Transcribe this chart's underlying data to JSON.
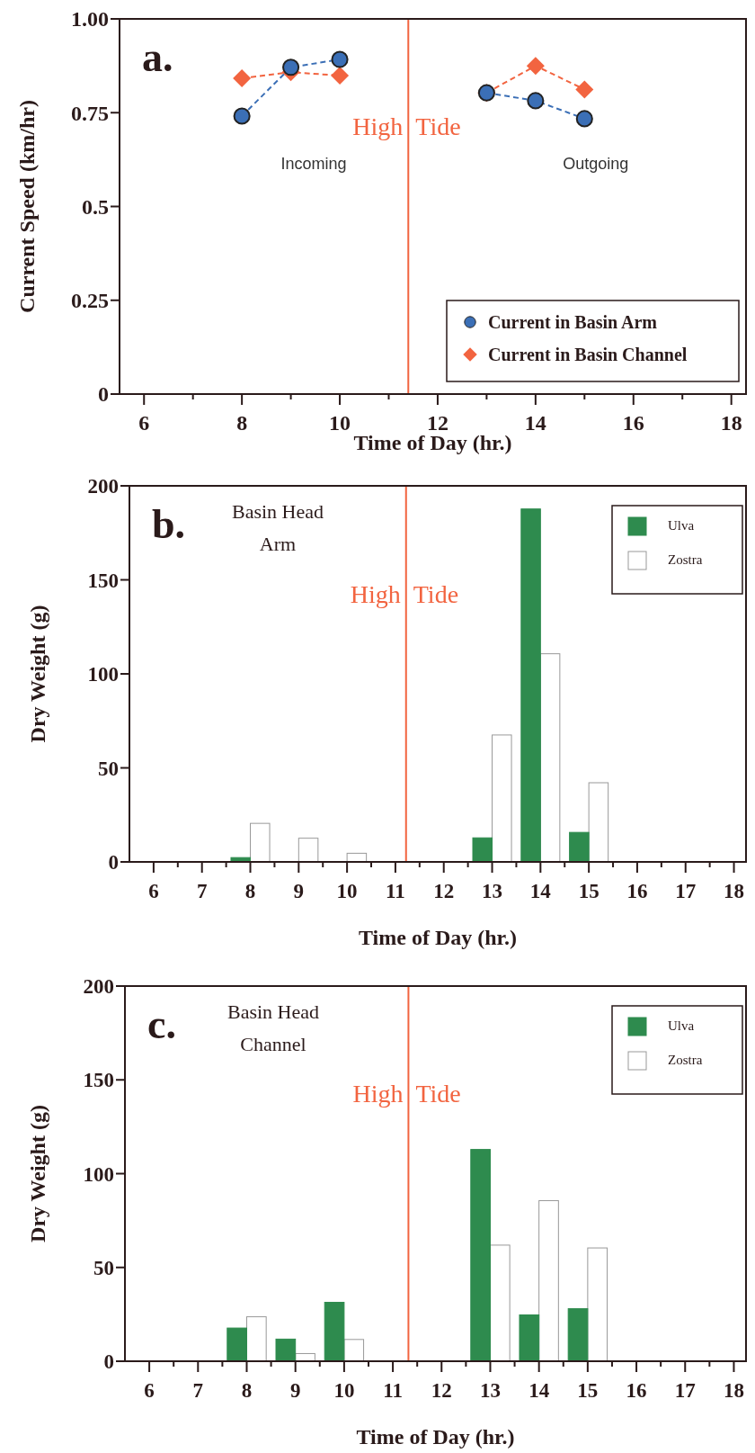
{
  "chart_data": [
    {
      "type": "line",
      "xlabel": "Time of Day (hr.)",
      "ylabel": "Current Speed (km/hr)",
      "xlim": [
        5.5,
        18.3
      ],
      "ylim": [
        0,
        1
      ],
      "xticks": [
        6,
        {
          "value": 7,
          "label": null
        },
        8,
        {
          "value": 9,
          "label": null
        },
        10,
        {
          "value": 11,
          "label": null
        },
        12,
        {
          "value": 13,
          "label": null
        },
        14,
        {
          "value": 15,
          "label": null
        },
        16,
        {
          "value": 17,
          "label": null
        },
        18
      ],
      "yticks": [
        0,
        0.25,
        0.5,
        0.75,
        {
          "value": 1,
          "label": "1.00"
        }
      ],
      "x": [
        8,
        9,
        10,
        12,
        13,
        14,
        15
      ],
      "series": [
        {
          "name": "Current in Basin Arm",
          "color": "#3b6fb6",
          "marker": "circle",
          "values": [
            0.741,
            0.871,
            0.892,
            null,
            0.803,
            0.782,
            0.734
          ]
        },
        {
          "name": "Current in Basin Channel",
          "color": "#f26440",
          "marker": "diamond",
          "values": [
            0.842,
            0.858,
            0.849,
            null,
            0.803,
            0.875,
            0.812
          ]
        }
      ],
      "line_style": "dashed",
      "legend": "bottom right",
      "ref_lines": [
        {
          "axis": "x",
          "value": 11.4,
          "label": "High Tide",
          "color": "#f26440"
        }
      ],
      "annotations": [
        "a.",
        "Incoming",
        "Outgoing"
      ]
    },
    {
      "type": "bar",
      "xlabel": "Time of Day (hr.)",
      "ylabel": "Dry Weight (g)",
      "xlim": [
        5.5,
        18.25
      ],
      "ylim": [
        0,
        200
      ],
      "xticks": [
        6,
        {
          "value": 6.5,
          "label": null
        },
        7,
        {
          "value": 7.5,
          "label": null
        },
        8,
        {
          "value": 8.5,
          "label": null
        },
        9,
        {
          "value": 9.5,
          "label": null
        },
        10,
        {
          "value": 10.5,
          "label": null
        },
        11,
        {
          "value": 11.5,
          "label": null
        },
        12,
        {
          "value": 12.5,
          "label": null
        },
        13,
        {
          "value": 13.5,
          "label": null
        },
        14,
        {
          "value": 14.5,
          "label": null
        },
        15,
        {
          "value": 15.5,
          "label": null
        },
        16,
        {
          "value": 16.5,
          "label": null
        },
        17,
        {
          "value": 17.5,
          "label": null
        },
        18
      ],
      "yticks": [
        0,
        50,
        100,
        150,
        200
      ],
      "x": [
        8,
        9,
        10,
        13,
        14,
        15
      ],
      "series": [
        {
          "name": "Ulva",
          "color": "#2e8b4e",
          "values": [
            2.3,
            0,
            0,
            12.8,
            187.7,
            15.7
          ]
        },
        {
          "name": "Zostra",
          "color": "#ffffff",
          "values": [
            20.5,
            12.6,
            4.6,
            67.5,
            110.7,
            42.1
          ]
        }
      ],
      "legend": "top right",
      "ref_lines": [
        {
          "axis": "x",
          "value": 11.22,
          "label": "High Tide",
          "color": "#f26440"
        }
      ],
      "annotations": [
        "b.",
        "Basin Head Arm"
      ]
    },
    {
      "type": "bar",
      "xlabel": "Time of Day (hr.)",
      "ylabel": "Dry Weight (g)",
      "xlim": [
        5.5,
        18.25
      ],
      "ylim": [
        0,
        200
      ],
      "xticks": [
        6,
        {
          "value": 6.5,
          "label": null
        },
        7,
        {
          "value": 7.5,
          "label": null
        },
        8,
        {
          "value": 8.5,
          "label": null
        },
        9,
        {
          "value": 9.5,
          "label": null
        },
        10,
        {
          "value": 10.5,
          "label": null
        },
        11,
        {
          "value": 11.5,
          "label": null
        },
        12,
        {
          "value": 12.5,
          "label": null
        },
        13,
        {
          "value": 13.5,
          "label": null
        },
        14,
        {
          "value": 14.5,
          "label": null
        },
        15,
        {
          "value": 15.5,
          "label": null
        },
        16,
        {
          "value": 16.5,
          "label": null
        },
        17,
        {
          "value": 17.5,
          "label": null
        },
        18
      ],
      "yticks": [
        0,
        50,
        100,
        150,
        200
      ],
      "x": [
        8,
        9,
        10,
        13,
        14,
        15
      ],
      "series": [
        {
          "name": "Ulva",
          "color": "#2e8b4e",
          "values": [
            17.7,
            11.8,
            31.4,
            112.9,
            24.7,
            28.0
          ]
        },
        {
          "name": "Zostra",
          "color": "#ffffff",
          "values": [
            23.7,
            4.1,
            11.6,
            61.9,
            85.6,
            60.4
          ]
        }
      ],
      "legend": "top right",
      "ref_lines": [
        {
          "axis": "x",
          "value": 11.32,
          "label": "High Tide",
          "color": "#f26440"
        }
      ],
      "annotations": [
        "c.",
        "Basin Head Channel"
      ]
    }
  ]
}
